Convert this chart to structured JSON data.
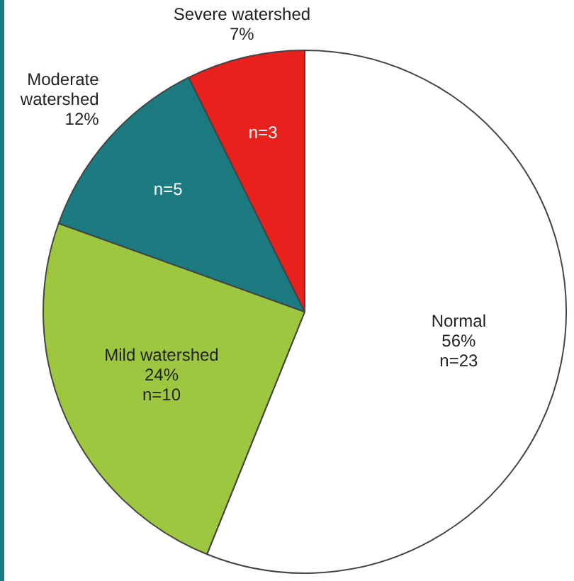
{
  "chart_data": {
    "type": "pie",
    "categories": [
      "Normal",
      "Mild watershed",
      "Moderate watershed",
      "Severe watershed"
    ],
    "values": [
      23,
      10,
      5,
      3
    ],
    "value_labels": [
      "56%\nn=23",
      "24%\nn=10",
      "12%\nn=5",
      "7%\nn=3"
    ],
    "colors": [
      "#ffffff",
      "#9dc73f",
      "#1b7b80",
      "#e8211d"
    ],
    "legend": false
  }
}
